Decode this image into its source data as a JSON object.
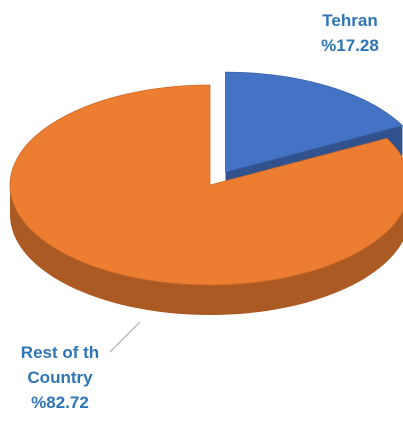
{
  "chart_data": {
    "type": "pie",
    "categories": [
      "Tehran",
      "Rest of th Country"
    ],
    "values": [
      17.28,
      82.72
    ],
    "value_labels": [
      "%17.28",
      "%82.72"
    ],
    "colors": [
      "#4472c4",
      "#ed7d31"
    ],
    "explode": [
      true,
      false
    ]
  }
}
